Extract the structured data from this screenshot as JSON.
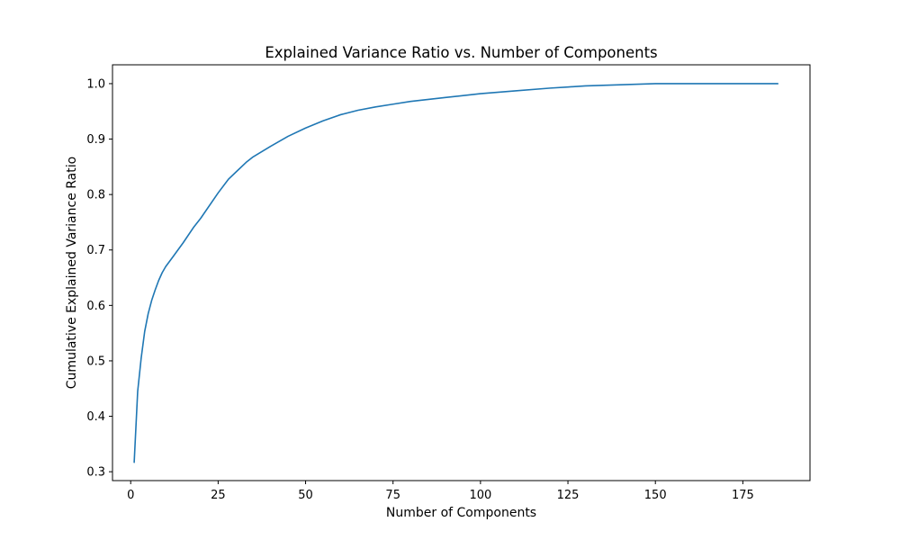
{
  "chart_data": {
    "type": "line",
    "title": "Explained Variance Ratio vs. Number of Components",
    "xlabel": "Number of Components",
    "ylabel": "Cumulative Explained Variance Ratio",
    "xlim": [
      -5.2,
      194.2
    ],
    "ylim": [
      0.284,
      1.034
    ],
    "xticks": [
      0,
      25,
      50,
      75,
      100,
      125,
      150,
      175
    ],
    "xtick_labels": [
      "0",
      "25",
      "50",
      "75",
      "100",
      "125",
      "150",
      "175"
    ],
    "yticks": [
      0.3,
      0.4,
      0.5,
      0.6,
      0.7,
      0.8,
      0.9,
      1.0
    ],
    "ytick_labels": [
      "0.3",
      "0.4",
      "0.5",
      "0.6",
      "0.7",
      "0.8",
      "0.9",
      "1.0"
    ],
    "grid": false,
    "legend": "none",
    "series": [
      {
        "color": "#1f77b4",
        "x": [
          1,
          2,
          3,
          4,
          5,
          6,
          7,
          8,
          9,
          10,
          12,
          15,
          18,
          20,
          25,
          28,
          30,
          33,
          35,
          40,
          45,
          50,
          55,
          60,
          65,
          70,
          75,
          80,
          90,
          100,
          110,
          120,
          125,
          130,
          140,
          150,
          160,
          170,
          175,
          185
        ],
        "y": [
          0.317,
          0.445,
          0.505,
          0.553,
          0.585,
          0.609,
          0.628,
          0.645,
          0.659,
          0.67,
          0.687,
          0.713,
          0.741,
          0.757,
          0.803,
          0.828,
          0.84,
          0.858,
          0.868,
          0.887,
          0.905,
          0.92,
          0.933,
          0.944,
          0.952,
          0.958,
          0.963,
          0.968,
          0.975,
          0.982,
          0.987,
          0.992,
          0.994,
          0.996,
          0.998,
          1.0,
          1.0,
          1.0,
          1.0,
          1.0
        ]
      }
    ]
  }
}
